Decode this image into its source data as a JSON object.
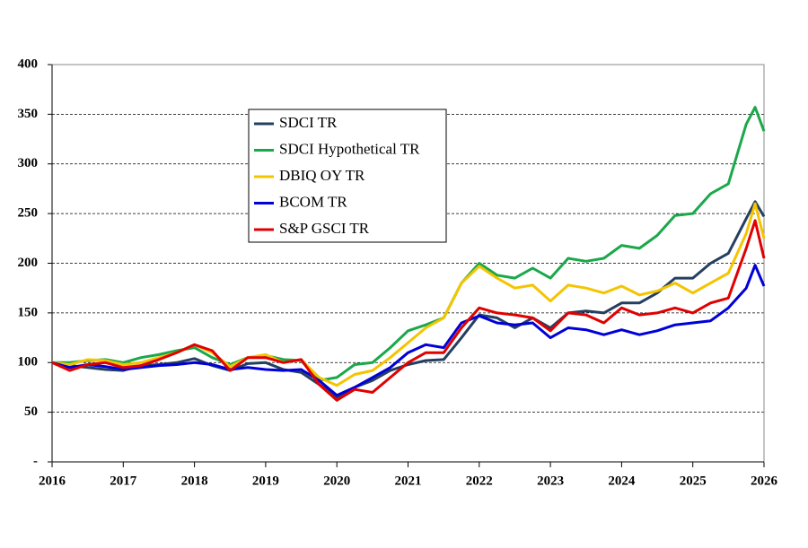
{
  "chart_data": {
    "type": "line",
    "x": [
      2016,
      2016.25,
      2016.5,
      2016.75,
      2017,
      2017.25,
      2017.5,
      2017.75,
      2018,
      2018.25,
      2018.5,
      2018.75,
      2019,
      2019.25,
      2019.5,
      2019.75,
      2020,
      2020.25,
      2020.5,
      2020.75,
      2021,
      2021.25,
      2021.5,
      2021.75,
      2022,
      2022.25,
      2022.5,
      2022.75,
      2023,
      2023.25,
      2023.5,
      2023.75,
      2024,
      2024.25,
      2024.5,
      2024.75,
      2025,
      2025.25,
      2025.5,
      2025.75,
      2025.875,
      2026
    ],
    "series": [
      {
        "name": "SDCI TR",
        "color": "#243f60",
        "values": [
          100,
          97,
          95,
          93,
          92,
          97,
          98,
          100,
          104,
          97,
          92,
          99,
          100,
          93,
          90,
          78,
          65,
          75,
          82,
          92,
          98,
          102,
          103,
          125,
          148,
          145,
          135,
          145,
          135,
          150,
          152,
          150,
          160,
          160,
          170,
          185,
          185,
          200,
          210,
          245,
          262,
          247
        ]
      },
      {
        "name": "SDCI Hypothetical TR",
        "color": "#1aa84a",
        "values": [
          100,
          100,
          102,
          103,
          100,
          105,
          108,
          112,
          115,
          105,
          98,
          105,
          107,
          103,
          102,
          82,
          85,
          98,
          100,
          115,
          132,
          138,
          145,
          180,
          200,
          188,
          185,
          195,
          185,
          205,
          202,
          205,
          218,
          215,
          228,
          248,
          250,
          270,
          280,
          340,
          357,
          333
        ]
      },
      {
        "name": "DBIQ OY TR",
        "color": "#f5c400",
        "values": [
          100,
          98,
          103,
          102,
          98,
          100,
          105,
          110,
          118,
          110,
          96,
          105,
          108,
          100,
          103,
          85,
          77,
          88,
          92,
          105,
          120,
          135,
          145,
          180,
          197,
          185,
          175,
          178,
          162,
          178,
          175,
          170,
          177,
          168,
          172,
          180,
          170,
          180,
          190,
          230,
          260,
          225
        ]
      },
      {
        "name": "BCOM TR",
        "color": "#0000d8",
        "values": [
          100,
          95,
          98,
          96,
          93,
          95,
          97,
          98,
          100,
          98,
          93,
          95,
          93,
          92,
          93,
          82,
          67,
          75,
          85,
          95,
          110,
          118,
          115,
          140,
          147,
          140,
          138,
          140,
          125,
          135,
          133,
          128,
          133,
          128,
          132,
          138,
          140,
          142,
          155,
          175,
          198,
          177
        ]
      },
      {
        "name": "S&P GSCI TR",
        "color": "#e00000",
        "values": [
          100,
          92,
          98,
          100,
          95,
          97,
          103,
          110,
          118,
          112,
          92,
          105,
          105,
          100,
          103,
          78,
          62,
          73,
          70,
          85,
          100,
          110,
          110,
          135,
          155,
          150,
          148,
          145,
          132,
          150,
          148,
          140,
          155,
          148,
          150,
          155,
          150,
          160,
          165,
          215,
          243,
          205
        ]
      }
    ],
    "xlim": [
      2016,
      2026
    ],
    "xticks": [
      2016,
      2017,
      2018,
      2019,
      2020,
      2021,
      2022,
      2023,
      2024,
      2025,
      2026
    ],
    "ylim": [
      0,
      400
    ],
    "yticks": [
      {
        "value": 0,
        "label": "-"
      },
      50,
      100,
      150,
      200,
      250,
      300,
      350,
      400
    ],
    "grid": true,
    "legend": "upper left"
  }
}
